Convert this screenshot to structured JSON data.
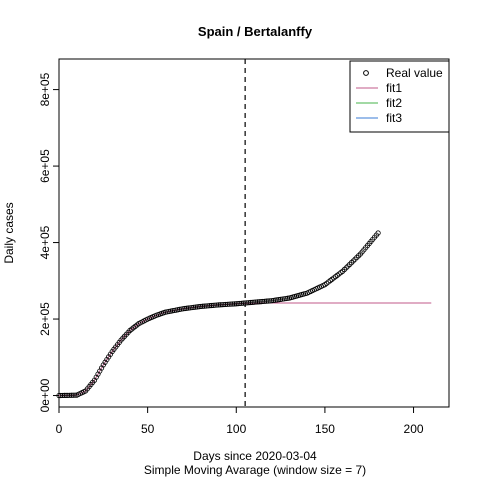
{
  "chart_data": {
    "type": "scatter",
    "title": "Spain / Bertalanffy",
    "xlabel": "Days since 2020-03-04",
    "subtitle": "Simple Moving Avarage (window size = 7)",
    "ylabel": "Daily cases",
    "xlim": [
      0,
      220
    ],
    "ylim": [
      -30000,
      880000
    ],
    "x_ticks": [
      0,
      50,
      100,
      150,
      200
    ],
    "x_tick_labels": [
      "0",
      "50",
      "100",
      "150",
      "200"
    ],
    "y_ticks": [
      0,
      200000,
      400000,
      600000,
      800000
    ],
    "y_tick_labels": [
      "0e+00",
      "2e+05",
      "4e+05",
      "6e+05",
      "8e+05"
    ],
    "vline_x": 105,
    "real_value": {
      "name": "Real value",
      "x": [
        0,
        10,
        15,
        20,
        25,
        30,
        35,
        40,
        45,
        50,
        55,
        60,
        70,
        80,
        90,
        100,
        105,
        110,
        120,
        130,
        140,
        150,
        160,
        170,
        180
      ],
      "y": [
        0,
        1000,
        12000,
        40000,
        80000,
        115000,
        145000,
        170000,
        188000,
        200000,
        210000,
        218000,
        227000,
        233000,
        237000,
        240000,
        242000,
        244000,
        248000,
        255000,
        268000,
        290000,
        325000,
        370000,
        425000
      ]
    },
    "fits": [
      {
        "name": "fit1",
        "color": "#c1588a",
        "x": [
          0,
          10,
          15,
          20,
          25,
          30,
          35,
          40,
          45,
          50,
          55,
          60,
          70,
          80,
          90,
          100,
          105,
          120,
          140,
          160,
          180,
          200,
          210
        ],
        "y": [
          0,
          1000,
          12000,
          40000,
          80000,
          115000,
          145000,
          170000,
          188000,
          200000,
          210000,
          218000,
          227000,
          233000,
          237000,
          240000,
          241000,
          242000,
          242000,
          242000,
          242000,
          242000,
          242000
        ]
      },
      {
        "name": "fit2",
        "color": "#44b349",
        "x": [],
        "y": []
      },
      {
        "name": "fit3",
        "color": "#3a7bd5",
        "x": [],
        "y": []
      }
    ],
    "legend": {
      "placement": "top-right",
      "entries": [
        {
          "name": "Real value",
          "kind": "point"
        },
        {
          "name": "fit1",
          "kind": "line",
          "color": "#c1588a"
        },
        {
          "name": "fit2",
          "kind": "line",
          "color": "#44b349"
        },
        {
          "name": "fit3",
          "kind": "line",
          "color": "#3a7bd5"
        }
      ]
    },
    "grid": false
  }
}
